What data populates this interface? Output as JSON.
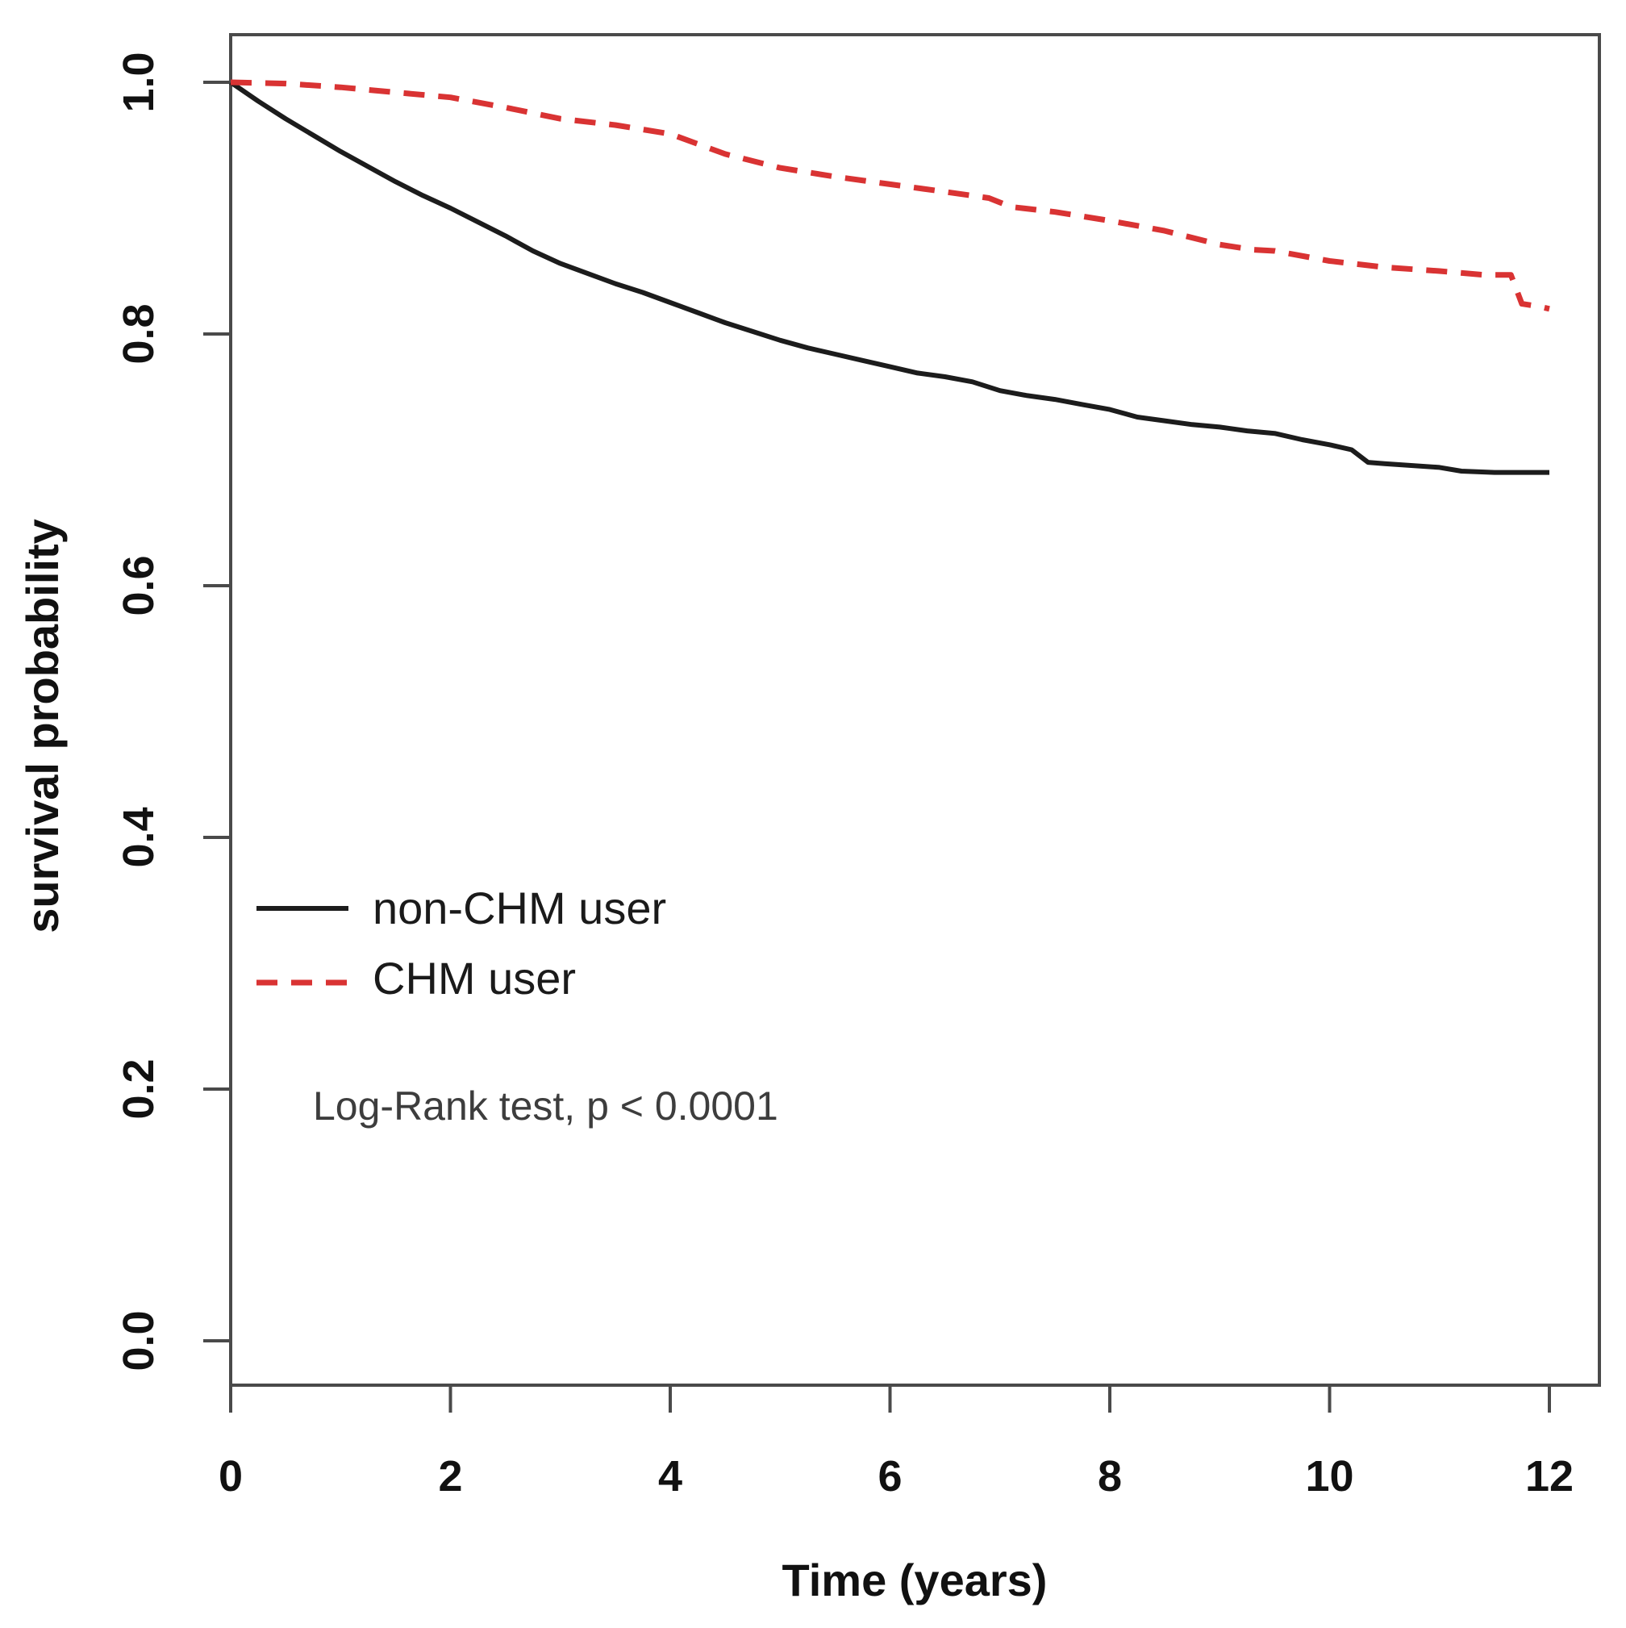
{
  "chart_data": {
    "type": "line",
    "subtype": "kaplan-meier-survival",
    "title": "",
    "xlabel": "Time (years)",
    "ylabel": "survival probability",
    "xlim": [
      0,
      12
    ],
    "ylim": [
      0.0,
      1.0
    ],
    "grid": "off",
    "x_ticks": {
      "values": [
        0,
        2,
        4,
        6,
        8,
        10,
        12
      ],
      "labels": [
        "0",
        "2",
        "4",
        "6",
        "8",
        "10",
        "12"
      ]
    },
    "y_ticks": {
      "values": [
        0.0,
        0.2,
        0.4,
        0.6,
        0.8,
        1.0
      ],
      "labels": [
        "0.0",
        "0.2",
        "0.4",
        "0.6",
        "0.8",
        "1.0"
      ]
    },
    "annotation": "Log-Rank test, p < 0.0001",
    "colors": {
      "non_chm": "#1c1c1c",
      "chm": "#d93333",
      "axis": "#4a4a4a"
    },
    "legend": {
      "position": "left-center",
      "entries": [
        {
          "label": "non-CHM user",
          "line_style": "solid",
          "color": "#1c1c1c"
        },
        {
          "label": "CHM user",
          "line_style": "dashed",
          "color": "#d93333"
        }
      ]
    },
    "series": [
      {
        "name": "non-CHM user",
        "line_style": "solid",
        "color": "#1c1c1c",
        "points": [
          [
            0,
            1.0
          ],
          [
            0.25,
            0.985
          ],
          [
            0.5,
            0.971
          ],
          [
            0.75,
            0.958
          ],
          [
            1.0,
            0.945
          ],
          [
            1.25,
            0.933
          ],
          [
            1.5,
            0.921
          ],
          [
            1.75,
            0.91
          ],
          [
            2.0,
            0.9
          ],
          [
            2.25,
            0.889
          ],
          [
            2.5,
            0.878
          ],
          [
            2.75,
            0.866
          ],
          [
            3.0,
            0.856
          ],
          [
            3.25,
            0.848
          ],
          [
            3.5,
            0.84
          ],
          [
            3.75,
            0.833
          ],
          [
            4.0,
            0.825
          ],
          [
            4.25,
            0.817
          ],
          [
            4.5,
            0.809
          ],
          [
            4.75,
            0.802
          ],
          [
            5.0,
            0.795
          ],
          [
            5.25,
            0.789
          ],
          [
            5.5,
            0.784
          ],
          [
            5.75,
            0.779
          ],
          [
            6.0,
            0.774
          ],
          [
            6.25,
            0.769
          ],
          [
            6.5,
            0.766
          ],
          [
            6.75,
            0.762
          ],
          [
            7.0,
            0.755
          ],
          [
            7.25,
            0.751
          ],
          [
            7.5,
            0.748
          ],
          [
            7.75,
            0.744
          ],
          [
            8.0,
            0.74
          ],
          [
            8.25,
            0.734
          ],
          [
            8.5,
            0.731
          ],
          [
            8.75,
            0.728
          ],
          [
            9.0,
            0.726
          ],
          [
            9.25,
            0.723
          ],
          [
            9.5,
            0.721
          ],
          [
            9.75,
            0.716
          ],
          [
            10.0,
            0.712
          ],
          [
            10.2,
            0.708
          ],
          [
            10.35,
            0.698
          ],
          [
            10.5,
            0.697
          ],
          [
            11.0,
            0.694
          ],
          [
            11.2,
            0.691
          ],
          [
            11.5,
            0.69
          ],
          [
            12.0,
            0.69
          ]
        ]
      },
      {
        "name": "CHM user",
        "line_style": "dashed",
        "color": "#d93333",
        "points": [
          [
            0,
            1.0
          ],
          [
            0.5,
            0.999
          ],
          [
            1.0,
            0.996
          ],
          [
            1.5,
            0.992
          ],
          [
            2.0,
            0.988
          ],
          [
            2.5,
            0.98
          ],
          [
            3.0,
            0.971
          ],
          [
            3.5,
            0.966
          ],
          [
            4.0,
            0.959
          ],
          [
            4.5,
            0.943
          ],
          [
            5.0,
            0.932
          ],
          [
            5.5,
            0.925
          ],
          [
            6.0,
            0.919
          ],
          [
            6.5,
            0.913
          ],
          [
            6.9,
            0.908
          ],
          [
            7.1,
            0.901
          ],
          [
            7.5,
            0.897
          ],
          [
            8.0,
            0.89
          ],
          [
            8.5,
            0.882
          ],
          [
            9.0,
            0.871
          ],
          [
            9.3,
            0.867
          ],
          [
            9.5,
            0.866
          ],
          [
            10.0,
            0.858
          ],
          [
            10.5,
            0.853
          ],
          [
            11.0,
            0.85
          ],
          [
            11.4,
            0.847
          ],
          [
            11.65,
            0.847
          ],
          [
            11.75,
            0.824
          ],
          [
            11.9,
            0.822
          ],
          [
            12.0,
            0.82
          ]
        ]
      }
    ]
  }
}
